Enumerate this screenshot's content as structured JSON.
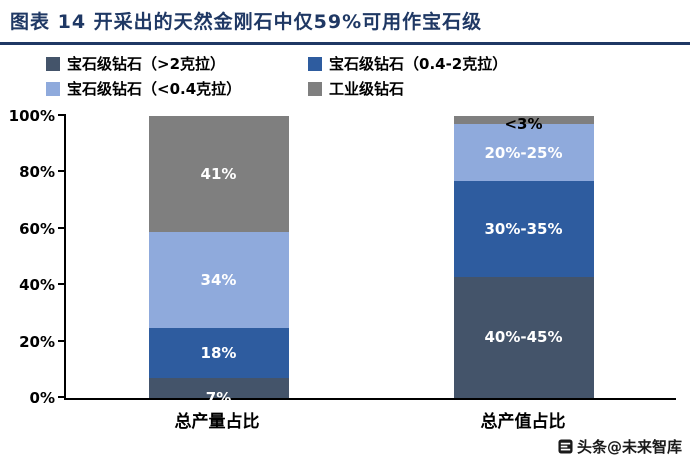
{
  "title": "图表 14  开采出的天然金刚石中仅59%可用作宝石级",
  "watermark": {
    "text": "头条@未来智库"
  },
  "colors": {
    "title_navy": "#1F3864",
    "axis_black": "#000000",
    "dark_slate": "#44546A",
    "medium_blue": "#2E5C9F",
    "light_blue": "#8FAADC",
    "gray": "#7F7F7F"
  },
  "chart_data": {
    "type": "bar",
    "stacked": true,
    "title": "开采出的天然金刚石中仅59%可用作宝石级",
    "categories": [
      "总产量占比",
      "总产值占比"
    ],
    "series": [
      {
        "name": "宝石级钻石（>2克拉）",
        "color": "#44546A",
        "values": [
          7,
          43
        ],
        "labels": [
          "7%",
          "40%-45%"
        ]
      },
      {
        "name": "宝石级钻石（0.4-2克拉）",
        "color": "#2E5C9F",
        "values": [
          18,
          34
        ],
        "labels": [
          "18%",
          "30%-35%"
        ]
      },
      {
        "name": "宝石级钻石（<0.4克拉）",
        "color": "#8FAADC",
        "values": [
          34,
          20
        ],
        "labels": [
          "34%",
          "20%-25%"
        ]
      },
      {
        "name": "工业级钻石",
        "color": "#7F7F7F",
        "values": [
          41,
          3
        ],
        "labels": [
          "41%",
          "<3%"
        ],
        "label_colors": [
          "#FFFFFF",
          "#000000"
        ]
      }
    ],
    "ylim": [
      0,
      100
    ],
    "yticks": [
      "0%",
      "20%",
      "40%",
      "60%",
      "80%",
      "100%"
    ],
    "grid": false,
    "legend_position": "top"
  }
}
